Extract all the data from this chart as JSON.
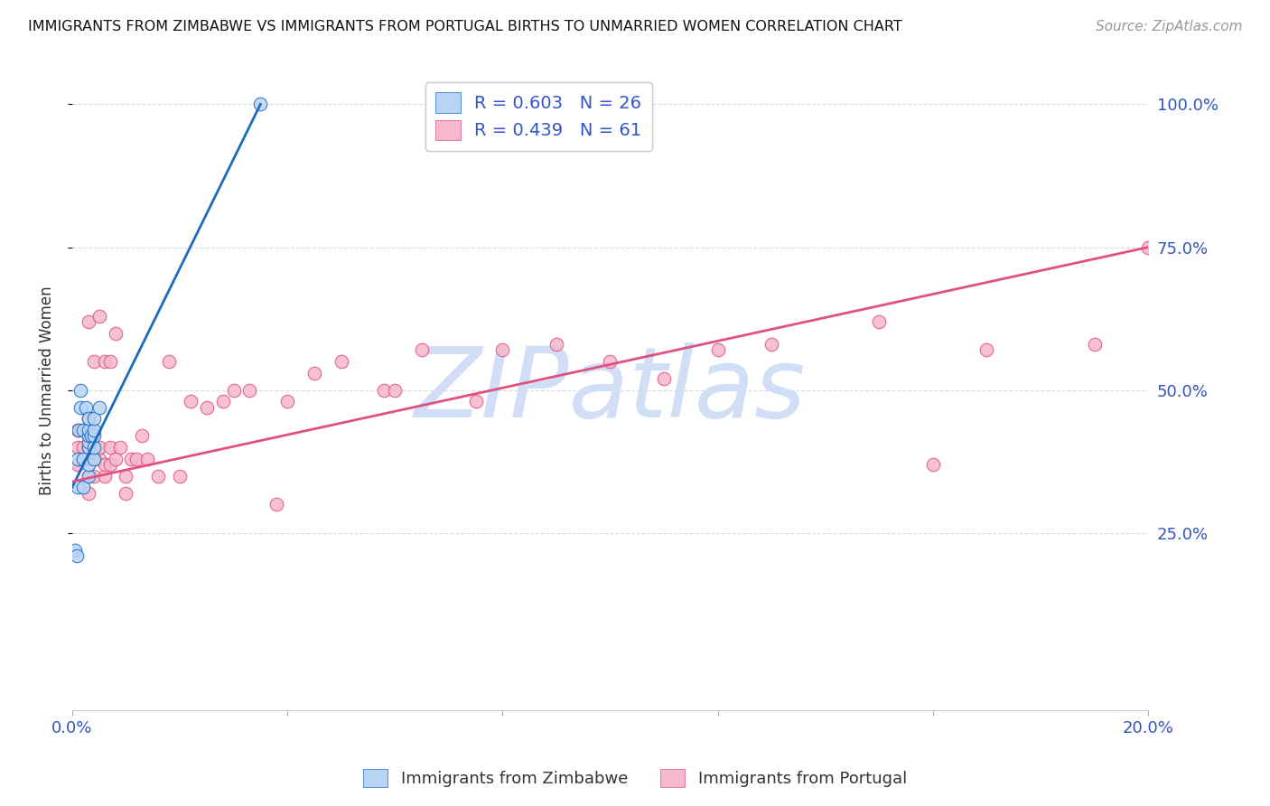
{
  "title": "IMMIGRANTS FROM ZIMBABWE VS IMMIGRANTS FROM PORTUGAL BIRTHS TO UNMARRIED WOMEN CORRELATION CHART",
  "source": "Source: ZipAtlas.com",
  "ylabel": "Births to Unmarried Women",
  "r_zimbabwe": 0.603,
  "n_zimbabwe": 26,
  "r_portugal": 0.439,
  "n_portugal": 61,
  "color_zimbabwe": "#b8d4f5",
  "color_portugal": "#f5b8cc",
  "line_color_zimbabwe": "#1a6bbf",
  "line_color_portugal": "#e05080",
  "watermark": "ZIPatlas",
  "watermark_color": "#d0dff5",
  "background_color": "#ffffff",
  "grid_color": "#d8dce8",
  "zimbabwe_x": [
    0.0005,
    0.0008,
    0.001,
    0.001,
    0.0012,
    0.0015,
    0.0015,
    0.002,
    0.002,
    0.002,
    0.0025,
    0.003,
    0.003,
    0.003,
    0.003,
    0.003,
    0.003,
    0.003,
    0.0035,
    0.004,
    0.004,
    0.004,
    0.004,
    0.004,
    0.005,
    0.035
  ],
  "zimbabwe_y": [
    0.22,
    0.21,
    0.33,
    0.38,
    0.43,
    0.47,
    0.5,
    0.33,
    0.38,
    0.43,
    0.47,
    0.35,
    0.37,
    0.4,
    0.41,
    0.42,
    0.43,
    0.45,
    0.42,
    0.38,
    0.4,
    0.42,
    0.43,
    0.45,
    0.47,
    1.0
  ],
  "portugal_x": [
    0.001,
    0.001,
    0.001,
    0.002,
    0.002,
    0.002,
    0.003,
    0.003,
    0.003,
    0.003,
    0.003,
    0.003,
    0.003,
    0.004,
    0.004,
    0.004,
    0.005,
    0.005,
    0.005,
    0.006,
    0.006,
    0.006,
    0.007,
    0.007,
    0.007,
    0.008,
    0.008,
    0.009,
    0.01,
    0.01,
    0.011,
    0.012,
    0.013,
    0.014,
    0.016,
    0.018,
    0.02,
    0.022,
    0.025,
    0.028,
    0.03,
    0.033,
    0.038,
    0.04,
    0.045,
    0.05,
    0.058,
    0.06,
    0.065,
    0.075,
    0.08,
    0.09,
    0.1,
    0.11,
    0.12,
    0.13,
    0.15,
    0.16,
    0.17,
    0.19,
    0.2
  ],
  "portugal_y": [
    0.37,
    0.4,
    0.43,
    0.38,
    0.4,
    0.43,
    0.32,
    0.35,
    0.38,
    0.4,
    0.42,
    0.45,
    0.62,
    0.35,
    0.38,
    0.55,
    0.38,
    0.4,
    0.63,
    0.35,
    0.37,
    0.55,
    0.37,
    0.4,
    0.55,
    0.38,
    0.6,
    0.4,
    0.32,
    0.35,
    0.38,
    0.38,
    0.42,
    0.38,
    0.35,
    0.55,
    0.35,
    0.48,
    0.47,
    0.48,
    0.5,
    0.5,
    0.3,
    0.48,
    0.53,
    0.55,
    0.5,
    0.5,
    0.57,
    0.48,
    0.57,
    0.58,
    0.55,
    0.52,
    0.57,
    0.58,
    0.62,
    0.37,
    0.57,
    0.58,
    0.75
  ],
  "zim_line_x": [
    0.0,
    0.035
  ],
  "zim_line_y": [
    0.33,
    1.0
  ],
  "por_line_x": [
    0.0,
    0.2
  ],
  "por_line_y": [
    0.34,
    0.75
  ],
  "xlim": [
    0.0,
    0.2
  ],
  "ylim": [
    -0.06,
    1.06
  ],
  "yticks": [
    0.25,
    0.5,
    0.75,
    1.0
  ],
  "ytick_labels": [
    "25.0%",
    "50.0%",
    "75.0%",
    "100.0%"
  ],
  "xticks": [
    0.0,
    0.04,
    0.08,
    0.12,
    0.16,
    0.2
  ],
  "xtick_labels": [
    "0.0%",
    "",
    "",
    "",
    "",
    "20.0%"
  ]
}
